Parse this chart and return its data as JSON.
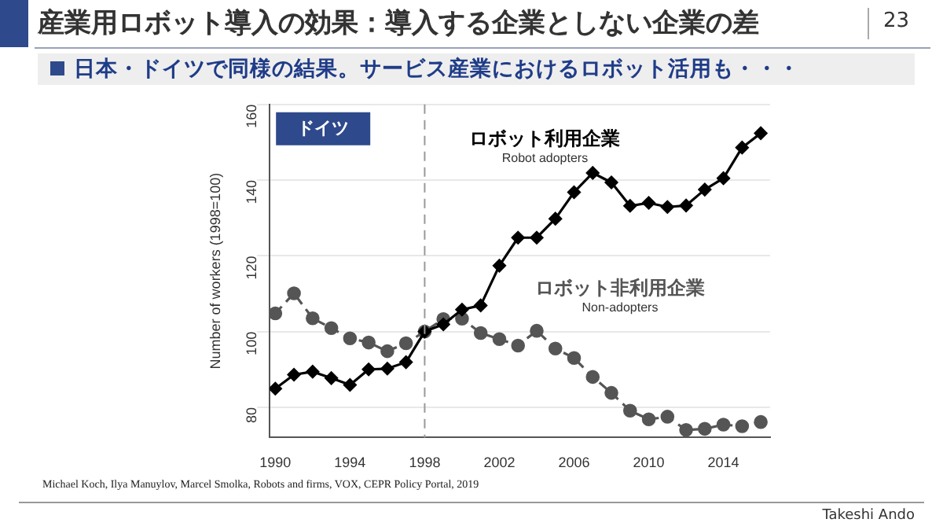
{
  "chart_data": {
    "type": "line",
    "title": "産業用ロボット導入の効果：導入する企業としない企業の差",
    "subtitle": "日本・ドイツで同様の結果。サービス産業におけるロボット活用も・・・",
    "ylabel": "Number of workers (1998=100)",
    "annotations": [
      "ドイツ",
      "Robot adopters",
      "Non-adopters",
      "Michael Koch, Ilya Manuylov, Marcel Smolka, Robots and firms, VOX, CEPR Policy Portal, 2019",
      "Takeshi Ando",
      "23"
    ],
    "x": [
      1990,
      1991,
      1992,
      1993,
      1994,
      1995,
      1996,
      1997,
      1998,
      1999,
      2000,
      2001,
      2002,
      2003,
      2004,
      2005,
      2006,
      2007,
      2008,
      2009,
      2010,
      2011,
      2012,
      2013,
      2014,
      2015,
      2016
    ],
    "series": [
      {
        "name": "ロボット利用企業",
        "color": "#000000",
        "marker": "diamond",
        "line_style": "solid",
        "values": [
          84.9,
          88.6,
          89.4,
          87.7,
          85.9,
          90.0,
          90.2,
          91.9,
          100,
          101.9,
          105.8,
          106.9,
          117.4,
          124.8,
          124.8,
          129.8,
          136.8,
          141.9,
          139.4,
          133.2,
          134.0,
          132.9,
          133.3,
          137.5,
          140.5,
          148.6,
          152.4
        ]
      },
      {
        "name": "ロボット非利用企業",
        "color": "#555555",
        "marker": "circle",
        "line_style": "dashed",
        "values": [
          104.8,
          110.1,
          103.5,
          100.9,
          98.2,
          97.1,
          94.8,
          96.9,
          100,
          103.3,
          103.4,
          99.6,
          98.0,
          96.3,
          100.2,
          95.5,
          93.0,
          88.0,
          83.8,
          79.1,
          76.8,
          77.5,
          74.0,
          74.3,
          75.4,
          75.0,
          76.1
        ]
      }
    ],
    "xlim": [
      1989.7,
      2016.5
    ],
    "ylim": [
      72,
      160
    ],
    "xticks": [
      1990,
      1994,
      1998,
      2002,
      2006,
      2010,
      2014
    ],
    "yticks": [
      80,
      100,
      120,
      140,
      160
    ],
    "ref_lines": [
      {
        "axis": "x",
        "value": 1998,
        "color": "#999999",
        "line_style": "dashed"
      }
    ],
    "grid": "y",
    "legend": false
  }
}
